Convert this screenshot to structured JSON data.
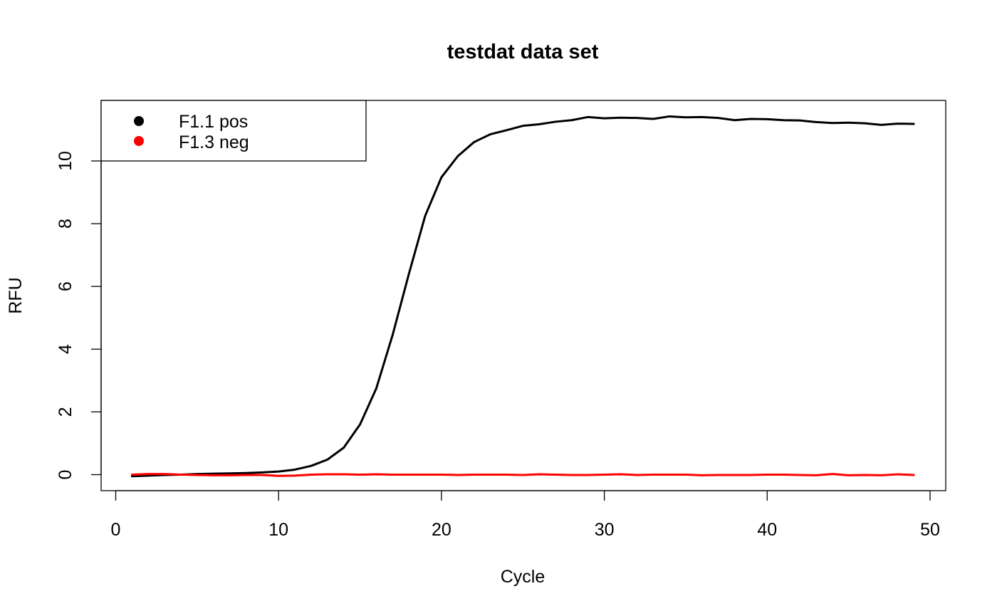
{
  "chart_data": {
    "type": "line",
    "title": "testdat data set",
    "xlabel": "Cycle",
    "ylabel": "RFU",
    "xlim": [
      0,
      50
    ],
    "ylim": [
      -0.5,
      12
    ],
    "x_ticks": [
      "0",
      "10",
      "20",
      "30",
      "40",
      "50"
    ],
    "y_ticks": [
      "0",
      "2",
      "4",
      "6",
      "8",
      "10"
    ],
    "grid": false,
    "legend_position": "top-left",
    "x": [
      1,
      2,
      3,
      4,
      5,
      6,
      7,
      8,
      9,
      10,
      11,
      12,
      13,
      14,
      15,
      16,
      17,
      18,
      19,
      20,
      21,
      22,
      23,
      24,
      25,
      26,
      27,
      28,
      29,
      30,
      31,
      32,
      33,
      34,
      35,
      36,
      37,
      38,
      39,
      40,
      41,
      42,
      43,
      44,
      45,
      46,
      47,
      48,
      49
    ],
    "series": [
      {
        "name": "F1.1 pos",
        "color": "#000000",
        "values": [
          -0.05,
          -0.03,
          -0.01,
          0.0,
          0.02,
          0.03,
          0.04,
          0.05,
          0.07,
          0.1,
          0.16,
          0.28,
          0.48,
          0.86,
          1.6,
          2.75,
          4.45,
          6.4,
          8.25,
          9.48,
          10.15,
          10.6,
          10.85,
          10.98,
          11.12,
          11.17,
          11.25,
          11.3,
          11.4,
          11.36,
          11.38,
          11.37,
          11.34,
          11.42,
          11.39,
          11.4,
          11.37,
          11.3,
          11.34,
          11.33,
          11.3,
          11.29,
          11.24,
          11.21,
          11.22,
          11.2,
          11.15,
          11.19,
          11.18
        ]
      },
      {
        "name": "F1.3 neg",
        "color": "#ff0000",
        "values": [
          0.0,
          0.02,
          0.02,
          0.0,
          -0.01,
          -0.02,
          -0.02,
          -0.01,
          -0.01,
          -0.04,
          -0.03,
          0.0,
          0.01,
          0.01,
          0.0,
          0.01,
          0.0,
          0.0,
          0.0,
          0.0,
          -0.01,
          0.0,
          0.0,
          0.0,
          -0.01,
          0.01,
          0.0,
          -0.01,
          -0.01,
          0.0,
          0.01,
          -0.01,
          0.0,
          0.0,
          0.0,
          -0.02,
          -0.01,
          -0.01,
          -0.01,
          0.0,
          0.0,
          -0.01,
          -0.02,
          0.02,
          -0.02,
          -0.01,
          -0.02,
          0.01,
          -0.01
        ]
      }
    ]
  }
}
